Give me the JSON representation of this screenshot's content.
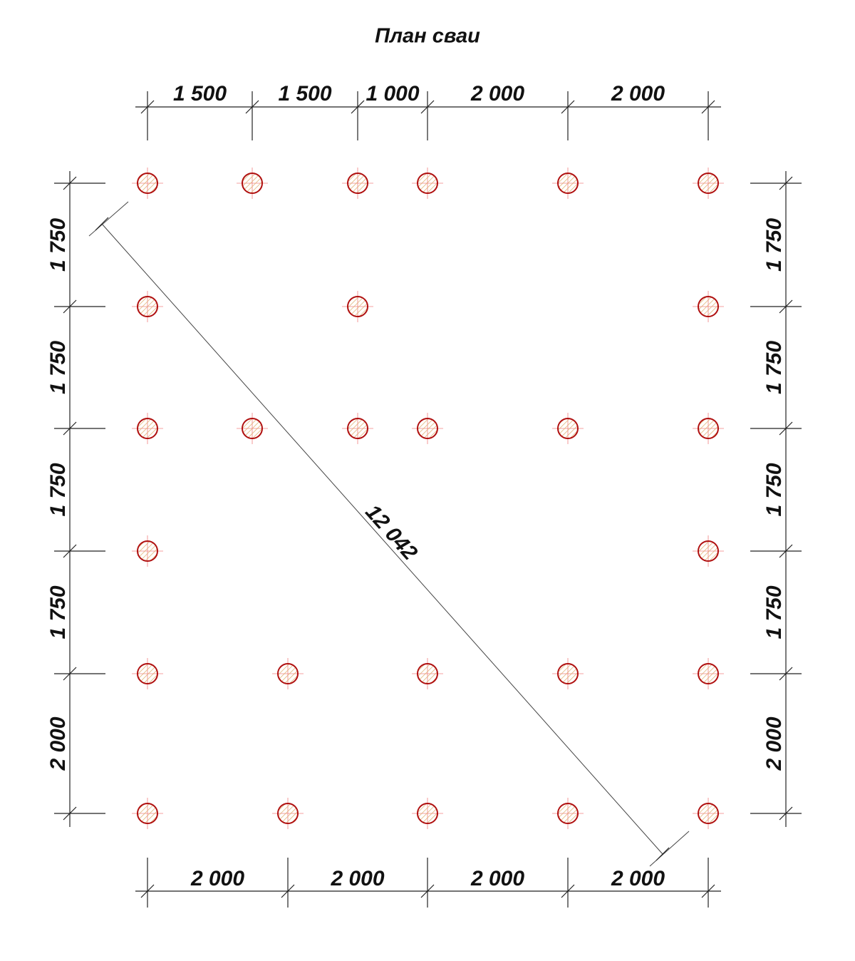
{
  "title": "План сваи",
  "dimensions": {
    "top": [
      "1 500",
      "1 500",
      "1 000",
      "2 000",
      "2 000"
    ],
    "bottom": [
      "2 000",
      "2 000",
      "2 000",
      "2 000"
    ],
    "left": [
      "1 750",
      "1 750",
      "1 750",
      "1 750",
      "2 000"
    ],
    "right": [
      "1 750",
      "1 750",
      "1 750",
      "1 750",
      "2 000"
    ],
    "diagonal": "12 042"
  }
}
